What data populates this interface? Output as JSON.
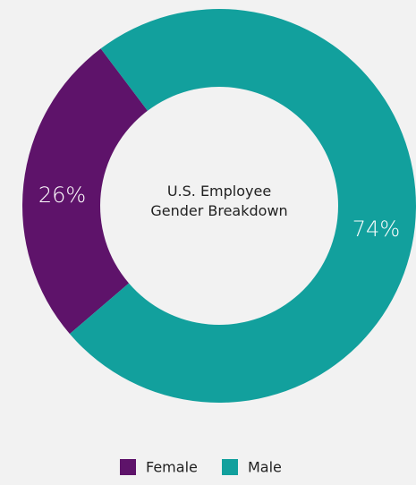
{
  "chart_data": {
    "type": "donut",
    "title": "U.S. Employee Gender Breakdown",
    "categories": [
      "Female",
      "Male"
    ],
    "values": [
      26,
      74
    ],
    "value_labels": [
      "26%",
      "74%"
    ],
    "colors": [
      "#5e136a",
      "#12a09d"
    ],
    "legend": "bottom"
  }
}
